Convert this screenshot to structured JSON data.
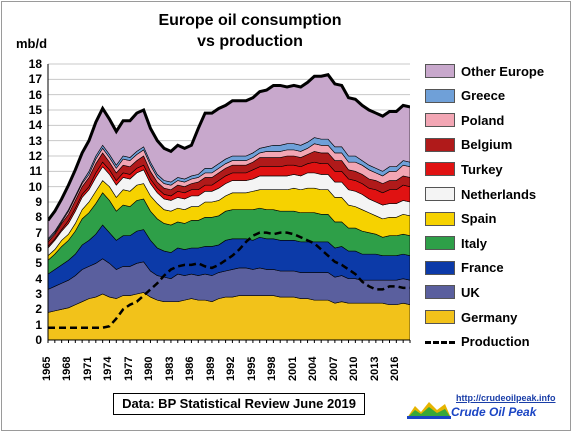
{
  "chart_data": {
    "type": "area",
    "title_line1": "Europe oil consumption",
    "title_line2": "vs production",
    "ylabel": "mb/d",
    "ylim": [
      0,
      18
    ],
    "yticks": [
      "0",
      "1",
      "2",
      "3",
      "4",
      "5",
      "6",
      "7",
      "8",
      "9",
      "10",
      "11",
      "12",
      "13",
      "14",
      "15",
      "16",
      "17",
      "18"
    ],
    "x": [
      1965,
      1966,
      1967,
      1968,
      1969,
      1970,
      1971,
      1972,
      1973,
      1974,
      1975,
      1976,
      1977,
      1978,
      1979,
      1980,
      1981,
      1982,
      1983,
      1984,
      1985,
      1986,
      1987,
      1988,
      1989,
      1990,
      1991,
      1992,
      1993,
      1994,
      1995,
      1996,
      1997,
      1998,
      1999,
      2000,
      2001,
      2002,
      2003,
      2004,
      2005,
      2006,
      2007,
      2008,
      2009,
      2010,
      2011,
      2012,
      2013,
      2014,
      2015,
      2016,
      2017,
      2018
    ],
    "xticks": [
      "1965",
      "1968",
      "1971",
      "1974",
      "1977",
      "1980",
      "1983",
      "1986",
      "1989",
      "1992",
      "1995",
      "1998",
      "2001",
      "2004",
      "2007",
      "2010",
      "2013",
      "2016"
    ],
    "series_order_bottom_to_top": [
      "Germany",
      "UK",
      "France",
      "Italy",
      "Spain",
      "Netherlands",
      "Turkey",
      "Belgium",
      "Poland",
      "Greece",
      "Other Europe"
    ],
    "series": [
      {
        "name": "Germany",
        "color": "#f2c21a",
        "values": [
          1.8,
          1.9,
          2.0,
          2.1,
          2.3,
          2.5,
          2.7,
          2.8,
          3.0,
          2.8,
          2.7,
          2.9,
          2.9,
          3.0,
          3.1,
          2.8,
          2.6,
          2.5,
          2.5,
          2.5,
          2.6,
          2.7,
          2.6,
          2.6,
          2.5,
          2.7,
          2.8,
          2.8,
          2.9,
          2.9,
          2.9,
          2.9,
          2.9,
          2.9,
          2.8,
          2.8,
          2.8,
          2.7,
          2.7,
          2.6,
          2.6,
          2.6,
          2.4,
          2.5,
          2.4,
          2.4,
          2.4,
          2.4,
          2.4,
          2.4,
          2.3,
          2.3,
          2.4,
          2.3
        ]
      },
      {
        "name": "UK",
        "color": "#5a5f9e",
        "values": [
          1.5,
          1.6,
          1.7,
          1.8,
          1.9,
          2.1,
          2.1,
          2.2,
          2.3,
          2.2,
          1.9,
          1.9,
          1.9,
          2.0,
          2.0,
          1.7,
          1.6,
          1.6,
          1.5,
          1.8,
          1.6,
          1.6,
          1.6,
          1.7,
          1.7,
          1.7,
          1.7,
          1.8,
          1.8,
          1.8,
          1.7,
          1.8,
          1.7,
          1.7,
          1.7,
          1.7,
          1.7,
          1.7,
          1.7,
          1.8,
          1.8,
          1.8,
          1.7,
          1.7,
          1.6,
          1.6,
          1.5,
          1.5,
          1.5,
          1.5,
          1.6,
          1.6,
          1.6,
          1.6
        ]
      },
      {
        "name": "France",
        "color": "#0c3aa8",
        "values": [
          1.0,
          1.1,
          1.2,
          1.3,
          1.4,
          1.6,
          1.7,
          1.9,
          2.2,
          2.0,
          1.9,
          2.0,
          2.0,
          2.1,
          2.1,
          2.0,
          1.8,
          1.7,
          1.7,
          1.7,
          1.7,
          1.7,
          1.8,
          1.8,
          1.9,
          1.8,
          2.0,
          2.0,
          1.9,
          1.9,
          1.9,
          2.0,
          2.0,
          2.0,
          2.0,
          2.0,
          2.0,
          2.0,
          2.0,
          2.0,
          2.0,
          2.0,
          1.9,
          1.9,
          1.8,
          1.8,
          1.7,
          1.7,
          1.7,
          1.6,
          1.6,
          1.6,
          1.6,
          1.6
        ]
      },
      {
        "name": "Italy",
        "color": "#2e9f48",
        "values": [
          0.9,
          1.0,
          1.2,
          1.3,
          1.5,
          1.7,
          1.8,
          2.0,
          2.1,
          2.1,
          1.9,
          2.0,
          1.9,
          2.0,
          2.0,
          1.9,
          1.9,
          1.8,
          1.8,
          1.7,
          1.7,
          1.8,
          1.8,
          1.9,
          1.9,
          1.9,
          1.9,
          1.9,
          1.9,
          1.9,
          2.0,
          1.9,
          1.9,
          1.9,
          1.9,
          1.9,
          1.9,
          1.9,
          1.9,
          1.9,
          1.8,
          1.8,
          1.7,
          1.6,
          1.5,
          1.5,
          1.5,
          1.4,
          1.3,
          1.2,
          1.3,
          1.3,
          1.3,
          1.3
        ]
      },
      {
        "name": "Spain",
        "color": "#f6d200",
        "values": [
          0.3,
          0.3,
          0.4,
          0.4,
          0.5,
          0.6,
          0.7,
          0.8,
          0.8,
          0.9,
          0.9,
          1.0,
          1.0,
          1.0,
          1.0,
          1.0,
          1.0,
          0.9,
          0.9,
          0.9,
          0.9,
          0.9,
          0.9,
          1.0,
          1.0,
          1.0,
          1.0,
          1.1,
          1.1,
          1.1,
          1.2,
          1.2,
          1.3,
          1.3,
          1.4,
          1.4,
          1.5,
          1.5,
          1.6,
          1.6,
          1.6,
          1.6,
          1.6,
          1.6,
          1.5,
          1.4,
          1.4,
          1.3,
          1.2,
          1.2,
          1.2,
          1.2,
          1.3,
          1.3
        ]
      },
      {
        "name": "Netherlands",
        "color": "#f4f4f4",
        "values": [
          0.5,
          0.6,
          0.6,
          0.7,
          0.8,
          0.8,
          0.8,
          0.9,
          0.9,
          0.8,
          0.8,
          0.8,
          0.8,
          0.8,
          0.9,
          0.8,
          0.7,
          0.7,
          0.7,
          0.7,
          0.7,
          0.7,
          0.7,
          0.7,
          0.7,
          0.8,
          0.8,
          0.8,
          0.8,
          0.8,
          0.8,
          0.9,
          0.9,
          0.9,
          0.9,
          0.9,
          0.9,
          0.9,
          1.0,
          1.0,
          1.0,
          1.0,
          1.0,
          1.0,
          1.0,
          1.0,
          1.0,
          0.9,
          0.9,
          0.9,
          0.9,
          0.9,
          0.9,
          0.9
        ]
      },
      {
        "name": "Turkey",
        "color": "#e01212",
        "values": [
          0.1,
          0.1,
          0.1,
          0.2,
          0.2,
          0.2,
          0.2,
          0.3,
          0.3,
          0.3,
          0.3,
          0.3,
          0.3,
          0.3,
          0.3,
          0.3,
          0.3,
          0.3,
          0.3,
          0.4,
          0.4,
          0.4,
          0.4,
          0.4,
          0.4,
          0.5,
          0.5,
          0.5,
          0.5,
          0.5,
          0.6,
          0.6,
          0.6,
          0.6,
          0.6,
          0.7,
          0.6,
          0.6,
          0.6,
          0.7,
          0.7,
          0.7,
          0.7,
          0.7,
          0.7,
          0.7,
          0.7,
          0.7,
          0.8,
          0.8,
          0.9,
          0.9,
          1.0,
          1.0
        ]
      },
      {
        "name": "Belgium",
        "color": "#b01a1a",
        "values": [
          0.3,
          0.3,
          0.4,
          0.4,
          0.5,
          0.5,
          0.6,
          0.6,
          0.6,
          0.5,
          0.5,
          0.5,
          0.5,
          0.5,
          0.6,
          0.5,
          0.4,
          0.4,
          0.4,
          0.4,
          0.4,
          0.4,
          0.5,
          0.5,
          0.5,
          0.5,
          0.5,
          0.5,
          0.5,
          0.5,
          0.5,
          0.6,
          0.6,
          0.6,
          0.6,
          0.6,
          0.6,
          0.6,
          0.6,
          0.7,
          0.7,
          0.7,
          0.7,
          0.7,
          0.6,
          0.6,
          0.6,
          0.6,
          0.6,
          0.6,
          0.6,
          0.6,
          0.6,
          0.6
        ]
      },
      {
        "name": "Poland",
        "color": "#f2a6b4",
        "values": [
          0.1,
          0.1,
          0.1,
          0.2,
          0.2,
          0.2,
          0.2,
          0.3,
          0.3,
          0.3,
          0.3,
          0.4,
          0.4,
          0.4,
          0.4,
          0.4,
          0.3,
          0.3,
          0.3,
          0.3,
          0.3,
          0.3,
          0.3,
          0.3,
          0.3,
          0.3,
          0.3,
          0.3,
          0.3,
          0.3,
          0.3,
          0.3,
          0.4,
          0.4,
          0.4,
          0.4,
          0.4,
          0.4,
          0.4,
          0.5,
          0.5,
          0.5,
          0.5,
          0.5,
          0.5,
          0.6,
          0.6,
          0.6,
          0.5,
          0.5,
          0.6,
          0.6,
          0.7,
          0.7
        ]
      },
      {
        "name": "Greece",
        "color": "#6fa0d8",
        "values": [
          0.1,
          0.1,
          0.1,
          0.1,
          0.1,
          0.1,
          0.2,
          0.2,
          0.2,
          0.2,
          0.2,
          0.2,
          0.2,
          0.2,
          0.2,
          0.2,
          0.2,
          0.2,
          0.2,
          0.2,
          0.2,
          0.2,
          0.2,
          0.3,
          0.3,
          0.3,
          0.3,
          0.3,
          0.3,
          0.3,
          0.3,
          0.3,
          0.3,
          0.4,
          0.4,
          0.4,
          0.4,
          0.4,
          0.4,
          0.4,
          0.4,
          0.4,
          0.4,
          0.4,
          0.4,
          0.4,
          0.3,
          0.3,
          0.3,
          0.3,
          0.3,
          0.3,
          0.3,
          0.3
        ]
      },
      {
        "name": "Other Europe",
        "color": "#c8a8cc",
        "values": [
          1.2,
          1.3,
          1.4,
          1.6,
          1.7,
          1.9,
          2.0,
          2.2,
          2.4,
          2.3,
          2.2,
          2.3,
          2.4,
          2.5,
          2.4,
          2.2,
          2.2,
          2.1,
          2.0,
          2.1,
          2.0,
          2.0,
          3.0,
          3.6,
          3.6,
          3.6,
          3.5,
          3.6,
          3.6,
          3.6,
          3.6,
          3.7,
          3.7,
          3.9,
          3.9,
          3.7,
          3.8,
          3.8,
          3.9,
          4.0,
          4.1,
          4.2,
          4.1,
          4.0,
          3.8,
          3.7,
          3.6,
          3.6,
          3.6,
          3.6,
          3.6,
          3.6,
          3.6,
          3.6
        ]
      },
      {
        "name": "Production",
        "style": "dashed",
        "color": "#000000",
        "values": [
          0.8,
          0.8,
          0.8,
          0.8,
          0.8,
          0.8,
          0.8,
          0.8,
          0.8,
          0.9,
          1.4,
          2.0,
          2.3,
          2.5,
          2.9,
          3.3,
          3.7,
          4.2,
          4.6,
          4.8,
          4.9,
          4.9,
          5.0,
          4.8,
          4.7,
          4.9,
          5.2,
          5.5,
          5.9,
          6.4,
          6.8,
          7.0,
          7.0,
          6.9,
          7.0,
          7.0,
          6.9,
          6.7,
          6.5,
          6.3,
          5.9,
          5.5,
          5.1,
          4.9,
          4.6,
          4.3,
          3.8,
          3.5,
          3.3,
          3.3,
          3.5,
          3.5,
          3.4,
          3.4
        ]
      }
    ],
    "legend_position": "right",
    "grid": true
  },
  "source_label": "Data: BP Statistical Review June 2019",
  "logo": {
    "url": "http://crudeoilpeak.info",
    "name": "Crude Oil Peak"
  }
}
